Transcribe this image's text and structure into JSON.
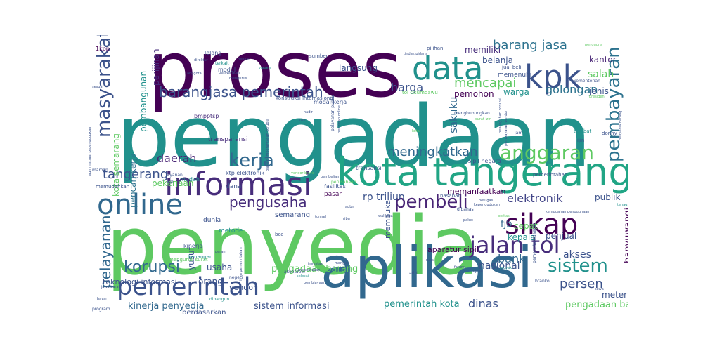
{
  "words": [
    {
      "text": "pengadaan",
      "color": "#21918c",
      "size": 120
    },
    {
      "text": "penyedia",
      "color": "#5ec962",
      "size": 115
    },
    {
      "text": "proses",
      "color": "#440154",
      "size": 110
    },
    {
      "text": "aplikasi",
      "color": "#31688e",
      "size": 80
    },
    {
      "text": "kota tangerang",
      "color": "#21a585",
      "size": 55
    },
    {
      "text": "informasi",
      "color": "#472d7b",
      "size": 45
    },
    {
      "text": "kpk",
      "color": "#3b528b",
      "size": 45
    },
    {
      "text": "data",
      "color": "#21918c",
      "size": 45
    },
    {
      "text": "online",
      "color": "#31688e",
      "size": 40
    },
    {
      "text": "sikap",
      "color": "#440154",
      "size": 40
    },
    {
      "text": "pemerintah",
      "color": "#3b528b",
      "size": 35
    },
    {
      "text": "jalan tol",
      "color": "#472d7b",
      "size": 32
    },
    {
      "text": "anggaran",
      "color": "#5ec962",
      "size": 28
    },
    {
      "text": "kerja",
      "color": "#31688e",
      "size": 26
    },
    {
      "text": "masyarakat",
      "color": "#3b528b",
      "size": 26
    },
    {
      "text": "pembeli",
      "color": "#482475",
      "size": 26
    },
    {
      "text": "sistem",
      "color": "#21918c",
      "size": 26
    },
    {
      "text": "pembayaran",
      "color": "#2c728e",
      "size": 26
    },
    {
      "text": "korupsi",
      "color": "#31688e",
      "size": 22
    },
    {
      "text": "barangjasa pemerintah",
      "color": "#3b528b",
      "size": 20
    },
    {
      "text": "pengusaha",
      "color": "#472d7b",
      "size": 20
    },
    {
      "text": "pelayanan",
      "color": "#31688e",
      "size": 20
    },
    {
      "text": "barang jasa",
      "color": "#2c728e",
      "size": 18
    },
    {
      "text": "mencapai",
      "color": "#5ec962",
      "size": 18
    },
    {
      "text": "meningkatkan",
      "color": "#31688e",
      "size": 18
    },
    {
      "text": "tangerang",
      "color": "#3b528b",
      "size": 18
    },
    {
      "text": "persen",
      "color": "#3b528b",
      "size": 18
    },
    {
      "text": "elektronik",
      "color": "#414487",
      "size": 16
    },
    {
      "text": "golongan",
      "color": "#2c728e",
      "size": 16
    },
    {
      "text": "bank",
      "color": "#31688e",
      "size": 16
    },
    {
      "text": "dinas",
      "color": "#3b528b",
      "size": 16
    },
    {
      "text": "daerah",
      "color": "#482475",
      "size": 16
    },
    {
      "text": "harga",
      "color": "#3b528b",
      "size": 16
    },
    {
      "text": "sakuku",
      "color": "#31688e",
      "size": 15
    },
    {
      "text": "banyuwangi",
      "color": "#440154",
      "size": 13
    },
    {
      "text": "pengadaan barangjasa",
      "color": "#5ec962",
      "size": 13
    },
    {
      "text": "salah",
      "color": "#5ec962",
      "size": 14
    },
    {
      "text": "jenis",
      "color": "#3b528b",
      "size": 12
    },
    {
      "text": "kantor",
      "color": "#482475",
      "size": 12
    },
    {
      "text": "pemohon",
      "color": "#440154",
      "size": 12
    },
    {
      "text": "warga",
      "color": "#21918c",
      "size": 12
    },
    {
      "text": "belanja",
      "color": "#3b528b",
      "size": 12
    },
    {
      "text": "memiliki",
      "color": "#472d7b",
      "size": 12
    },
    {
      "text": "langsung",
      "color": "#3b528b",
      "size": 12
    },
    {
      "text": "kota semarang",
      "color": "#5ec962",
      "size": 12
    },
    {
      "text": "pencari kerja",
      "color": "#2c728e",
      "size": 12
    },
    {
      "text": "pekerjaan",
      "color": "#5ec962",
      "size": 12
    },
    {
      "text": "rp triliun",
      "color": "#3b528b",
      "size": 14
    },
    {
      "text": "fjb",
      "color": "#31688e",
      "size": 13
    },
    {
      "text": "pemerintah kota",
      "color": "#21918c",
      "size": 13
    },
    {
      "text": "kinerja penyedia",
      "color": "#31688e",
      "size": 13
    },
    {
      "text": "sistem informasi",
      "color": "#3b528b",
      "size": 13
    },
    {
      "text": "pengadaan barang",
      "color": "#5ec962",
      "size": 13
    },
    {
      "text": "nasional",
      "color": "#3b528b",
      "size": 14
    },
    {
      "text": "akses",
      "color": "#3b528b",
      "size": 14
    },
    {
      "text": "meter",
      "color": "#3b528b",
      "size": 12
    },
    {
      "text": "publik",
      "color": "#3b528b",
      "size": 12
    },
    {
      "text": "pembangunan",
      "color": "#21918c",
      "size": 12
    },
    {
      "text": "perijinan",
      "color": "#472d7b",
      "size": 12
    },
    {
      "text": "memanfaatkan",
      "color": "#440154",
      "size": 11
    },
    {
      "text": "penjual",
      "color": "#3b528b",
      "size": 12
    },
    {
      "text": "kepala",
      "color": "#21918c",
      "size": 12
    },
    {
      "text": "cepat",
      "color": "#5ec962",
      "size": 12
    },
    {
      "text": "membuka",
      "color": "#3b528b",
      "size": 11
    },
    {
      "text": "aparatur sipil",
      "color": "#440154",
      "size": 11
    },
    {
      "text": "usaha",
      "color": "#3b528b",
      "size": 12
    },
    {
      "text": "orang",
      "color": "#3b528b",
      "size": 12
    },
    {
      "text": "yusuf",
      "color": "#3b528b",
      "size": 12
    },
    {
      "text": "teknologi informasi",
      "color": "#3b528b",
      "size": 11
    },
    {
      "text": "vendor",
      "color": "#3b528b",
      "size": 11
    },
    {
      "text": "berdasarkan",
      "color": "#3b528b",
      "size": 10
    },
    {
      "text": "semarang",
      "color": "#3b528b",
      "size": 10
    },
    {
      "text": "memenuhi",
      "color": "#3b528b",
      "size": 9
    },
    {
      "text": "bmpptsp",
      "color": "#472d7b",
      "size": 8
    },
    {
      "text": "transparansi",
      "color": "#472d7b",
      "size": 9
    },
    {
      "text": "dana",
      "color": "#3b528b",
      "size": 9
    },
    {
      "text": "pasar",
      "color": "#440154",
      "size": 9
    },
    {
      "text": "dunia",
      "color": "#3b528b",
      "size": 9
    },
    {
      "text": "metode",
      "color": "#21918c",
      "size": 9
    },
    {
      "text": "kinerja",
      "color": "#3b528b",
      "size": 8
    },
    {
      "text": "modul",
      "color": "#3b528b",
      "size": 8
    },
    {
      "text": "lelang",
      "color": "#3b528b",
      "size": 8
    },
    {
      "text": "1kpp",
      "color": "#440154",
      "size": 8
    },
    {
      "text": "modal kerja",
      "color": "#3b528b",
      "size": 8
    },
    {
      "text": "fasilitas",
      "color": "#3b528b",
      "size": 8
    },
    {
      "text": "transaksi",
      "color": "#3b528b",
      "size": 8
    },
    {
      "text": "sipil negara",
      "color": "#3b528b",
      "size": 8
    },
    {
      "text": "pemerintahan",
      "color": "#3b528b",
      "size": 7
    },
    {
      "text": "ktp elektronik",
      "color": "#3b528b",
      "size": 8
    },
    {
      "text": "mudah",
      "color": "#21918c",
      "size": 8
    },
    {
      "text": "nasabah",
      "color": "#3b528b",
      "size": 7
    },
    {
      "text": "keuangan",
      "color": "#21918c",
      "size": 7
    },
    {
      "text": "ijin",
      "color": "#3b528b",
      "size": 7
    },
    {
      "text": "terlibat",
      "color": "#21918c",
      "size": 7
    },
    {
      "text": "donny",
      "color": "#3b528b",
      "size": 7
    },
    {
      "text": "bca",
      "color": "#3b528b",
      "size": 7
    },
    {
      "text": "memudahkan",
      "color": "#3b528b",
      "size": 7
    },
    {
      "text": "jual beli",
      "color": "#3b528b",
      "size": 7
    },
    {
      "text": "konstruksi internasional",
      "color": "#3b528b",
      "size": 7
    },
    {
      "text": "tol cisumdawu",
      "color": "#5ec962",
      "size": 7
    },
    {
      "text": "sumber",
      "color": "#3b528b",
      "size": 7
    },
    {
      "text": "pilihan",
      "color": "#3b528b",
      "size": 7
    },
    {
      "text": "kementerian",
      "color": "#3b528b",
      "size": 6
    },
    {
      "text": "jam",
      "color": "#3b528b",
      "size": 6
    },
    {
      "text": "menghubungkan",
      "color": "#3b528b",
      "size": 6
    },
    {
      "text": "layanan",
      "color": "#3b528b",
      "size": 6
    },
    {
      "text": "kali",
      "color": "#3b528b",
      "size": 6
    },
    {
      "text": "maman",
      "color": "#3b528b",
      "size": 6
    },
    {
      "text": "terkait",
      "color": "#21918c",
      "size": 6
    },
    {
      "text": "dibahas",
      "color": "#3b528b",
      "size": 6
    },
    {
      "text": "mengurus surat",
      "color": "#5ec962",
      "size": 7
    },
    {
      "text": "akuntabel",
      "color": "#3b528b",
      "size": 6
    },
    {
      "text": "negeri",
      "color": "#3b528b",
      "size": 6
    },
    {
      "text": "adhi",
      "color": "#3b528b",
      "size": 6
    },
    {
      "text": "program",
      "color": "#3b528b",
      "size": 6
    },
    {
      "text": "dibangun",
      "color": "#21918c",
      "size": 6
    },
    {
      "text": "branko",
      "color": "#3b528b",
      "size": 6
    },
    {
      "text": "walikota",
      "color": "#3b528b",
      "size": 5
    },
    {
      "text": "ribu",
      "color": "#3b528b",
      "size": 5
    },
    {
      "text": "investasi",
      "color": "#3b528b",
      "size": 5
    },
    {
      "text": "perusahaan",
      "color": "#5ec962",
      "size": 6
    },
    {
      "text": "apbn",
      "color": "#3b528b",
      "size": 5
    },
    {
      "text": "peran",
      "color": "#3b528b",
      "size": 5
    },
    {
      "text": "selesai",
      "color": "#21918c",
      "size": 5
    },
    {
      "text": "paket",
      "color": "#3b528b",
      "size": 5
    },
    {
      "text": "petugas",
      "color": "#3b528b",
      "size": 5
    },
    {
      "text": "mengisi",
      "color": "#3b528b",
      "size": 5
    },
    {
      "text": "menentukan",
      "color": "#3b528b",
      "size": 5
    },
    {
      "text": "kemudahan penggunaan",
      "color": "#3b528b",
      "size": 5
    },
    {
      "text": "tenaga",
      "color": "#21918c",
      "size": 5
    },
    {
      "text": "bayar",
      "color": "#3b528b",
      "size": 5
    },
    {
      "text": "jawa barat",
      "color": "#3b528b",
      "size": 5
    },
    {
      "text": "anggota",
      "color": "#3b528b",
      "size": 5
    },
    {
      "text": "direktur",
      "color": "#3b528b",
      "size": 5
    },
    {
      "text": "sesuai",
      "color": "#3b528b",
      "size": 5
    },
    {
      "text": "tindak pidana",
      "color": "#3b528b",
      "size": 5
    },
    {
      "text": "kondisi",
      "color": "#21918c",
      "size": 5
    },
    {
      "text": "penilai",
      "color": "#3b528b",
      "size": 5
    },
    {
      "text": "persyaratan",
      "color": "#3b528b",
      "size": 5
    },
    {
      "text": "mengurus",
      "color": "#3b528b",
      "size": 5
    },
    {
      "text": "pengguna",
      "color": "#5ec962",
      "size": 5
    },
    {
      "text": "presiden",
      "color": "#5ec962",
      "size": 5
    },
    {
      "text": "hadir",
      "color": "#3b528b",
      "size": 5
    },
    {
      "text": "izin",
      "color": "#3b528b",
      "size": 5
    },
    {
      "text": "kependudukan",
      "color": "#3b528b",
      "size": 5
    },
    {
      "text": "ruas",
      "color": "#3b528b",
      "size": 5
    },
    {
      "text": "forum",
      "color": "#3b528b",
      "size": 5
    },
    {
      "text": "proyek",
      "color": "#21918c",
      "size": 5
    },
    {
      "text": "pembelian",
      "color": "#3b528b",
      "size": 5
    },
    {
      "text": "tujuan",
      "color": "#3b528b",
      "size": 5
    },
    {
      "text": "kota",
      "color": "#5ec962",
      "size": 5
    },
    {
      "text": "berkas",
      "color": "#5ec962",
      "size": 5
    },
    {
      "text": "sewa",
      "color": "#3b528b",
      "size": 5
    },
    {
      "text": "administrasi kependudukan",
      "color": "#3b528b",
      "size": 5
    },
    {
      "text": "pelayanan publik",
      "color": "#3b528b",
      "size": 6
    },
    {
      "text": "perizinan online",
      "color": "#3b528b",
      "size": 5
    },
    {
      "text": "pencegahan korupsi",
      "color": "#3b528b",
      "size": 5
    },
    {
      "text": "pembayaran vendor",
      "color": "#3b528b",
      "size": 5
    },
    {
      "text": "ilmu pemerintahan",
      "color": "#3b528b",
      "size": 5
    },
    {
      "text": "biaya pemberantasan korupsi",
      "color": "#3b528b",
      "size": 5
    },
    {
      "text": "pemerintah daerah",
      "color": "#3b528b",
      "size": 6
    },
    {
      "text": "vendor bisnis",
      "color": "#5ec962",
      "size": 5
    },
    {
      "text": "surat izin",
      "color": "#5ec962",
      "size": 5
    },
    {
      "text": "tunnel",
      "color": "#3b528b",
      "size": 5
    },
    {
      "text": "pembiayaan",
      "color": "#3b528b",
      "size": 5
    },
    {
      "text": "penyedia barang",
      "color": "#3b528b",
      "size": 5
    }
  ]
}
